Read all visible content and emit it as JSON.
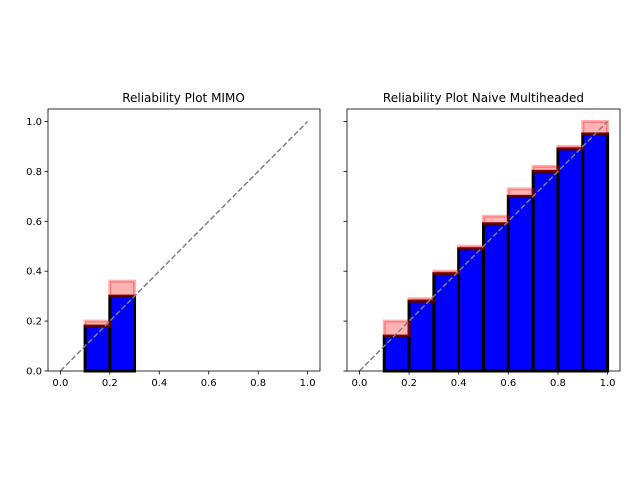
{
  "chart_data": [
    {
      "type": "bar",
      "title": "Reliability Plot MIMO",
      "xlabel": "",
      "ylabel": "",
      "xlim": [
        -0.05,
        1.05
      ],
      "ylim": [
        0,
        1.05
      ],
      "xticks": [
        "0.0",
        "0.2",
        "0.4",
        "0.6",
        "0.8",
        "1.0"
      ],
      "yticks": [
        "0.0",
        "0.2",
        "0.4",
        "0.6",
        "0.8",
        "1.0"
      ],
      "bin_width": 0.1,
      "bins": [
        {
          "x": 0.1,
          "accuracy": 0.18,
          "confidence": 0.2
        },
        {
          "x": 0.2,
          "accuracy": 0.3,
          "confidence": 0.36
        }
      ],
      "diagonal": true,
      "colors": {
        "accuracy": "#0000ff",
        "gap": "#ff0000",
        "edge": "#000000",
        "gap_edge": "#5a0000",
        "diagonal": "#808080"
      }
    },
    {
      "type": "bar",
      "title": "Reliability Plot Naive Multiheaded",
      "xlabel": "",
      "ylabel": "",
      "xlim": [
        -0.05,
        1.05
      ],
      "ylim": [
        0,
        1.05
      ],
      "xticks": [
        "0.0",
        "0.2",
        "0.4",
        "0.6",
        "0.8",
        "1.0"
      ],
      "yticks": [],
      "bin_width": 0.1,
      "bins": [
        {
          "x": 0.1,
          "accuracy": 0.14,
          "confidence": 0.2
        },
        {
          "x": 0.2,
          "accuracy": 0.28,
          "confidence": 0.29
        },
        {
          "x": 0.3,
          "accuracy": 0.39,
          "confidence": 0.4
        },
        {
          "x": 0.4,
          "accuracy": 0.49,
          "confidence": 0.5
        },
        {
          "x": 0.5,
          "accuracy": 0.59,
          "confidence": 0.62
        },
        {
          "x": 0.6,
          "accuracy": 0.7,
          "confidence": 0.73
        },
        {
          "x": 0.7,
          "accuracy": 0.8,
          "confidence": 0.82
        },
        {
          "x": 0.8,
          "accuracy": 0.89,
          "confidence": 0.9
        },
        {
          "x": 0.9,
          "accuracy": 0.95,
          "confidence": 1.0
        }
      ],
      "diagonal": true,
      "colors": {
        "accuracy": "#0000ff",
        "gap": "#ff0000",
        "edge": "#000000",
        "gap_edge": "#5a0000",
        "diagonal": "#808080"
      }
    }
  ]
}
